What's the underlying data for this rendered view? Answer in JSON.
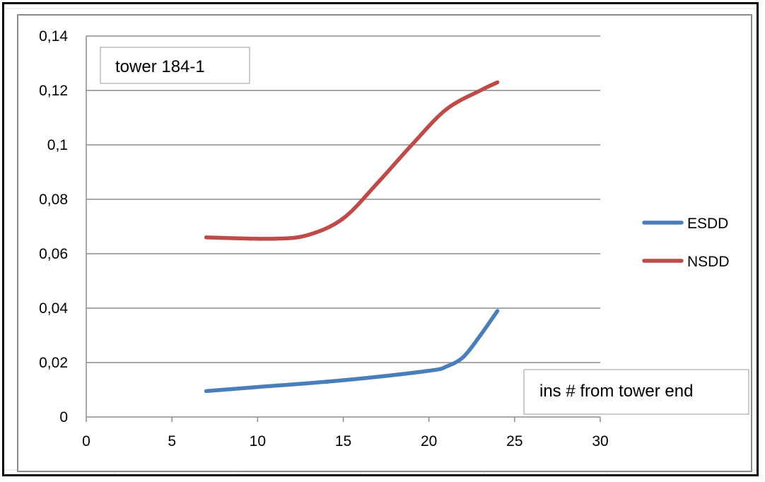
{
  "chart_data": {
    "type": "line",
    "title": "",
    "xlabel": "",
    "ylabel": "",
    "xlim": [
      0,
      30
    ],
    "ylim": [
      0,
      0.14
    ],
    "x_ticks": [
      "0",
      "5",
      "10",
      "15",
      "20",
      "25",
      "30"
    ],
    "y_ticks": [
      "0",
      "0,02",
      "0,04",
      "0,06",
      "0,08",
      "0,1",
      "0,12",
      "0,14"
    ],
    "grid": "horizontal",
    "legend_position": "right",
    "series": [
      {
        "name": "ESDD",
        "color": "#4a7ebb",
        "points": [
          [
            7,
            0.0095
          ],
          [
            10,
            0.011
          ],
          [
            15,
            0.0135
          ],
          [
            20,
            0.017
          ],
          [
            21,
            0.0185
          ],
          [
            22,
            0.022
          ],
          [
            23,
            0.03
          ],
          [
            24,
            0.039
          ]
        ]
      },
      {
        "name": "NSDD",
        "color": "#be4b48",
        "points": [
          [
            7,
            0.066
          ],
          [
            11,
            0.0655
          ],
          [
            13,
            0.067
          ],
          [
            15,
            0.073
          ],
          [
            17,
            0.086
          ],
          [
            19,
            0.1
          ],
          [
            21,
            0.113
          ],
          [
            23,
            0.12
          ],
          [
            24,
            0.123
          ]
        ]
      }
    ],
    "annotations": [
      {
        "name": "chart-title-box",
        "text": "tower 184-1"
      },
      {
        "name": "x-axis-note-box",
        "text": "ins # from tower end"
      }
    ]
  }
}
